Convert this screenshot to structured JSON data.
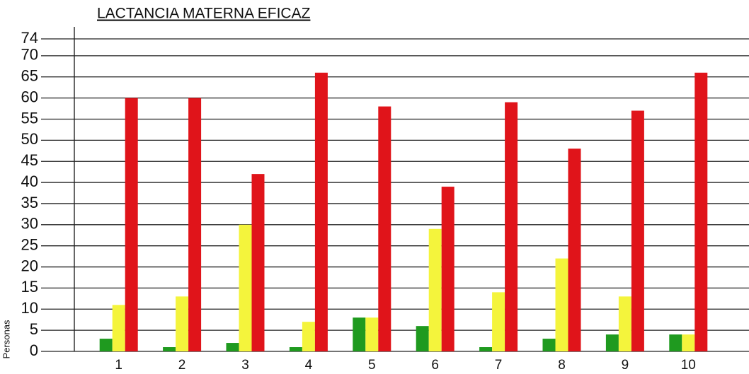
{
  "chart_data": {
    "type": "bar",
    "title": "LACTANCIA MATERNA EFICAZ",
    "y_label": "Personas",
    "categories": [
      "1",
      "2",
      "3",
      "4",
      "5",
      "6",
      "7",
      "8",
      "9",
      "10"
    ],
    "series": [
      {
        "color": "#1f9a1f",
        "values": [
          3,
          1,
          2,
          1,
          8,
          6,
          1,
          3,
          4,
          4
        ]
      },
      {
        "color": "#f4f43c",
        "values": [
          11,
          13,
          30,
          7,
          8,
          29,
          14,
          22,
          13,
          4
        ]
      },
      {
        "color": "#e0141a",
        "values": [
          60,
          60,
          42,
          66,
          58,
          39,
          59,
          48,
          57,
          66
        ]
      }
    ],
    "ylim": [
      0,
      74
    ],
    "yticks": [
      0,
      5,
      10,
      15,
      20,
      25,
      30,
      35,
      40,
      45,
      50,
      55,
      60,
      65,
      70,
      74
    ],
    "grid": true
  }
}
